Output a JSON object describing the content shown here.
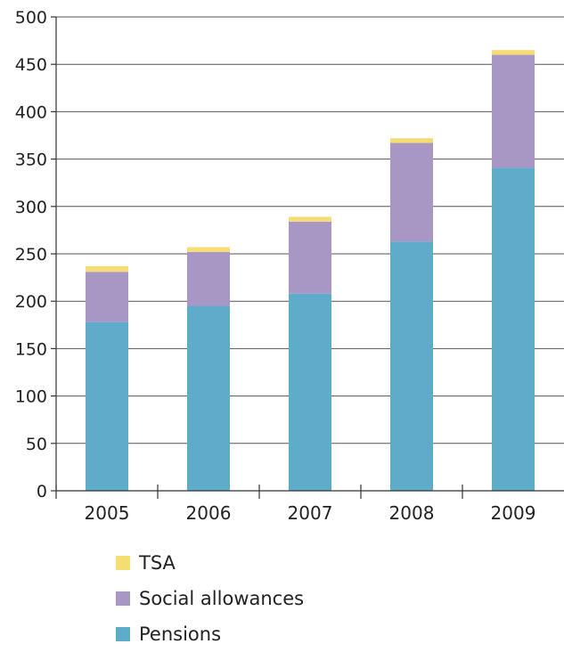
{
  "chart_data": {
    "type": "bar",
    "stacked": true,
    "categories": [
      "2005",
      "2006",
      "2007",
      "2008",
      "2009"
    ],
    "series": [
      {
        "name": "Pensions",
        "color": "#5fabca",
        "values": [
          178,
          195,
          208,
          263,
          341
        ]
      },
      {
        "name": "Social allowances",
        "color": "#a896c4",
        "values": [
          53,
          57,
          76,
          104,
          119
        ]
      },
      {
        "name": "TSA",
        "color": "#f5dc73",
        "values": [
          6,
          5,
          5,
          5,
          5
        ]
      }
    ],
    "title": "",
    "xlabel": "",
    "ylabel": "",
    "ylim": [
      0,
      500
    ],
    "yticks": [
      "0",
      "50",
      "100",
      "150",
      "200",
      "250",
      "300",
      "350",
      "400",
      "450",
      "500"
    ],
    "grid": true,
    "legend_position": "bottom-left",
    "legend_order": [
      "TSA",
      "Social allowances",
      "Pensions"
    ]
  }
}
